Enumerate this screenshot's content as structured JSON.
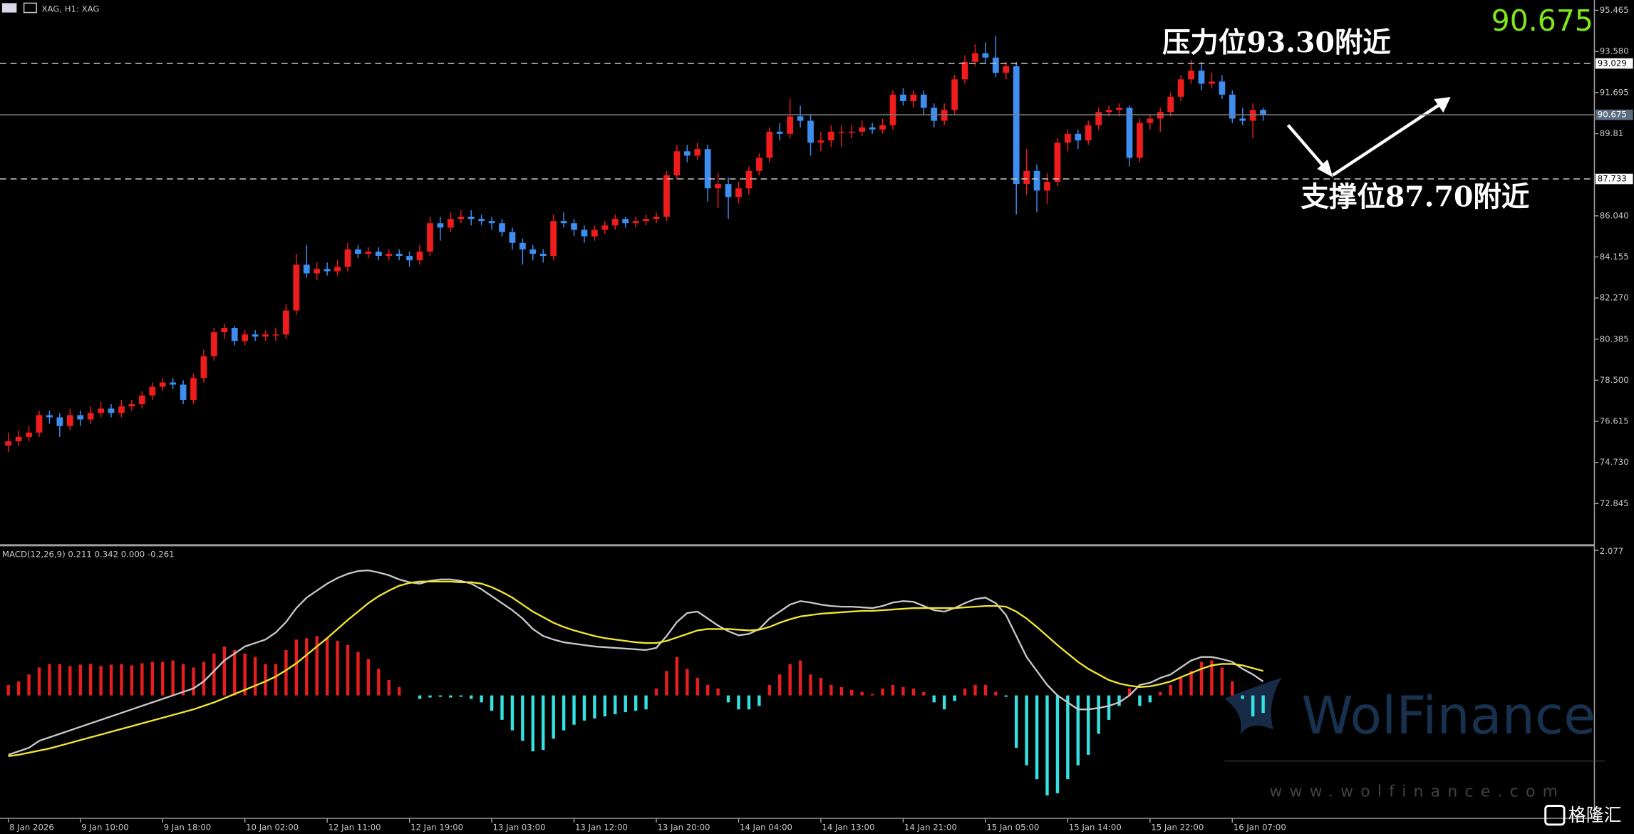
{
  "header": "XAG, H1: XAG",
  "watermark": {
    "brand": "WolFinance",
    "url": "www.wolfinance.com",
    "logo": "格隆汇"
  },
  "chart_data": [
    {
      "type": "candlestick",
      "up_color": "#ee1c1c",
      "down_color": "#3d8ef0",
      "categories": [
        "8 Jan 2026",
        null,
        null,
        null,
        null,
        null,
        null,
        "9 Jan 10:00",
        null,
        null,
        null,
        null,
        null,
        null,
        null,
        "9 Jan 18:00",
        null,
        null,
        null,
        null,
        null,
        null,
        null,
        "10 Jan 02:00",
        null,
        null,
        null,
        null,
        null,
        null,
        null,
        "12 Jan 11:00",
        null,
        null,
        null,
        null,
        null,
        null,
        null,
        "12 Jan 19:00",
        null,
        null,
        null,
        null,
        null,
        null,
        null,
        "13 Jan 03:00",
        null,
        null,
        null,
        null,
        null,
        null,
        null,
        "13 Jan 12:00",
        null,
        null,
        null,
        null,
        null,
        null,
        null,
        "13 Jan 20:00",
        null,
        null,
        null,
        null,
        null,
        null,
        null,
        "14 Jan 04:00",
        null,
        null,
        null,
        null,
        null,
        null,
        null,
        "14 Jan 13:00",
        null,
        null,
        null,
        null,
        null,
        null,
        null,
        "14 Jan 21:00",
        null,
        null,
        null,
        null,
        null,
        null,
        null,
        "15 Jan 05:00",
        null,
        null,
        null,
        null,
        null,
        null,
        null,
        "15 Jan 14:00",
        null,
        null,
        null,
        null,
        null,
        null,
        null,
        "15 Jan 22:00",
        null,
        null,
        null,
        null,
        null,
        null,
        null,
        "16 Jan 07:00",
        null,
        null,
        null
      ],
      "open": [
        75.5,
        75.7,
        75.9,
        76.1,
        76.9,
        76.8,
        76.4,
        76.9,
        76.7,
        77.0,
        77.2,
        77.0,
        77.3,
        77.4,
        77.8,
        78.2,
        78.4,
        78.3,
        77.6,
        78.6,
        79.6,
        80.7,
        80.9,
        80.3,
        80.6,
        80.5,
        80.6,
        80.6,
        81.7,
        83.8,
        83.4,
        83.6,
        83.5,
        83.7,
        84.5,
        84.3,
        84.4,
        84.2,
        84.3,
        84.2,
        84.0,
        84.4,
        85.7,
        85.5,
        85.9,
        86.0,
        85.9,
        85.8,
        85.7,
        85.3,
        84.8,
        84.5,
        84.3,
        84.2,
        85.8,
        85.7,
        85.4,
        85.1,
        85.4,
        85.6,
        85.9,
        85.7,
        85.8,
        85.9,
        86.0,
        87.9,
        89.0,
        88.8,
        89.1,
        87.3,
        87.5,
        86.9,
        87.3,
        88.1,
        88.7,
        89.9,
        89.8,
        90.6,
        90.4,
        89.4,
        89.5,
        89.9,
        89.9,
        89.9,
        90.1,
        90.0,
        90.2,
        91.6,
        91.3,
        91.6,
        91.0,
        90.4,
        90.9,
        92.3,
        93.1,
        93.5,
        93.3,
        92.6,
        92.9,
        87.5,
        88.1,
        87.2,
        87.6,
        89.4,
        89.8,
        89.5,
        90.2,
        90.8,
        90.9,
        91.0,
        88.7,
        90.3,
        90.5,
        90.8,
        91.5,
        92.3,
        92.7,
        92.1,
        92.2,
        91.6,
        90.5,
        90.4,
        90.9
      ],
      "high": [
        76.1,
        76.2,
        76.4,
        77.1,
        77.1,
        77.0,
        77.2,
        77.1,
        77.3,
        77.5,
        77.4,
        77.6,
        77.6,
        78.0,
        78.4,
        78.6,
        78.6,
        78.5,
        78.8,
        79.9,
        80.9,
        81.1,
        81.0,
        80.8,
        80.8,
        80.8,
        80.9,
        82.0,
        84.3,
        84.7,
        83.9,
        83.9,
        84.0,
        84.8,
        84.7,
        84.6,
        84.6,
        84.5,
        84.5,
        84.4,
        84.7,
        86.0,
        86.0,
        86.2,
        86.3,
        86.3,
        86.1,
        86.0,
        85.9,
        85.5,
        85.0,
        84.7,
        84.5,
        86.1,
        86.2,
        85.9,
        85.6,
        85.6,
        85.8,
        86.1,
        86.0,
        86.0,
        86.1,
        86.2,
        88.1,
        89.3,
        89.3,
        89.4,
        89.3,
        88.0,
        87.8,
        87.6,
        88.3,
        88.9,
        90.1,
        90.3,
        91.4,
        91.1,
        90.7,
        89.9,
        90.2,
        90.2,
        90.2,
        90.4,
        90.3,
        90.5,
        91.8,
        91.9,
        91.8,
        91.8,
        91.2,
        91.2,
        92.5,
        93.4,
        93.9,
        94.0,
        94.3,
        93.1,
        93.1,
        89.1,
        88.4,
        88.0,
        89.6,
        90.0,
        90.0,
        90.4,
        91.0,
        91.1,
        91.2,
        91.1,
        90.5,
        90.7,
        91.0,
        91.7,
        92.5,
        93.2,
        93.1,
        92.6,
        92.5,
        91.8,
        91.0,
        91.2,
        91.0
      ],
      "low": [
        75.2,
        75.5,
        75.7,
        75.9,
        76.5,
        75.9,
        76.2,
        76.4,
        76.5,
        76.8,
        76.8,
        76.8,
        77.1,
        77.2,
        77.6,
        78.0,
        78.1,
        77.4,
        77.4,
        78.4,
        79.4,
        80.4,
        80.1,
        80.1,
        80.3,
        80.3,
        80.3,
        80.4,
        81.5,
        83.2,
        83.1,
        83.3,
        83.3,
        83.5,
        84.1,
        84.1,
        84.0,
        84.0,
        84.0,
        83.7,
        83.8,
        84.2,
        84.9,
        85.3,
        85.7,
        85.6,
        85.6,
        85.4,
        85.1,
        84.5,
        83.8,
        84.0,
        83.9,
        84.0,
        85.5,
        85.1,
        84.8,
        84.9,
        85.2,
        85.4,
        85.5,
        85.5,
        85.6,
        85.7,
        85.8,
        87.7,
        88.5,
        88.6,
        86.7,
        86.4,
        85.9,
        86.6,
        87.0,
        87.9,
        88.5,
        89.5,
        89.6,
        90.1,
        88.8,
        89.0,
        89.2,
        89.2,
        89.6,
        89.7,
        89.8,
        89.8,
        90.0,
        91.1,
        91.0,
        90.7,
        90.1,
        90.2,
        90.7,
        92.1,
        92.9,
        93.0,
        92.4,
        92.3,
        86.1,
        87.0,
        86.2,
        86.6,
        87.4,
        89.0,
        89.1,
        89.3,
        90.0,
        90.6,
        90.6,
        88.3,
        88.5,
        90.0,
        89.9,
        90.6,
        91.3,
        92.1,
        91.8,
        91.9,
        91.4,
        90.3,
        90.2,
        89.6,
        90.4
      ],
      "close": [
        75.7,
        75.9,
        76.1,
        76.9,
        76.8,
        76.4,
        76.9,
        76.7,
        77.0,
        77.2,
        77.0,
        77.3,
        77.4,
        77.8,
        78.2,
        78.4,
        78.3,
        77.6,
        78.6,
        79.6,
        80.7,
        80.9,
        80.3,
        80.6,
        80.5,
        80.6,
        80.6,
        81.7,
        83.8,
        83.4,
        83.6,
        83.5,
        83.7,
        84.5,
        84.3,
        84.4,
        84.2,
        84.3,
        84.2,
        84.0,
        84.4,
        85.7,
        85.5,
        85.9,
        86.0,
        85.9,
        85.8,
        85.7,
        85.3,
        84.8,
        84.5,
        84.3,
        84.2,
        85.8,
        85.7,
        85.4,
        85.1,
        85.4,
        85.6,
        85.9,
        85.7,
        85.8,
        85.9,
        86.0,
        87.9,
        89.0,
        88.8,
        89.1,
        87.3,
        87.5,
        86.9,
        87.3,
        88.1,
        88.7,
        89.9,
        89.8,
        90.6,
        90.4,
        89.4,
        89.5,
        89.9,
        89.9,
        89.9,
        90.1,
        90.0,
        90.2,
        91.6,
        91.3,
        91.6,
        91.0,
        90.4,
        90.9,
        92.3,
        93.1,
        93.5,
        93.3,
        92.6,
        92.9,
        87.5,
        88.1,
        87.2,
        87.6,
        89.4,
        89.8,
        89.5,
        90.2,
        90.8,
        90.9,
        91.0,
        88.7,
        90.3,
        90.5,
        90.8,
        91.5,
        92.3,
        92.7,
        92.1,
        92.2,
        91.6,
        90.5,
        90.4,
        90.9,
        90.675
      ],
      "ylim": [
        70.98,
        95.94
      ],
      "yticks": [
        95.465,
        {
          "value": 93.58,
          "label": "93.580"
        },
        91.695,
        89.81,
        {
          "value": 86.04,
          "label": "86.040"
        },
        84.155,
        {
          "value": 82.27,
          "label": "82.270"
        },
        80.385,
        {
          "value": 78.5,
          "label": "78.500"
        },
        76.615,
        {
          "value": 74.73,
          "label": "74.730"
        },
        72.845
      ],
      "levels": [
        93.029,
        87.733
      ],
      "last_price": 90.675,
      "last_price_color": "#7ee81a",
      "annotations": [
        "压力位93.30附近",
        "支撑位87.70附近"
      ]
    },
    {
      "type": "macd",
      "title": "MACD(12,26,9) 0.211 0.342 0.000 -0.261",
      "ylim": [
        -1.76,
        2.12
      ],
      "yticks": [
        2.077
      ],
      "histogram": {
        "positive_color": "#e81e1e",
        "negative_color": "#33e3e3",
        "values": [
          0.15,
          0.2,
          0.3,
          0.4,
          0.45,
          0.45,
          0.42,
          0.44,
          0.45,
          0.42,
          0.44,
          0.45,
          0.43,
          0.46,
          0.48,
          0.48,
          0.5,
          0.45,
          0.4,
          0.48,
          0.6,
          0.7,
          0.65,
          0.6,
          0.55,
          0.45,
          0.45,
          0.65,
          0.8,
          0.82,
          0.85,
          0.82,
          0.78,
          0.72,
          0.62,
          0.52,
          0.38,
          0.22,
          0.12,
          0.0,
          -0.05,
          -0.03,
          -0.02,
          -0.03,
          -0.02,
          -0.05,
          -0.1,
          -0.22,
          -0.35,
          -0.5,
          -0.65,
          -0.8,
          -0.78,
          -0.62,
          -0.5,
          -0.42,
          -0.36,
          -0.33,
          -0.3,
          -0.27,
          -0.24,
          -0.22,
          -0.2,
          0.1,
          0.35,
          0.55,
          0.38,
          0.25,
          0.15,
          0.1,
          -0.1,
          -0.2,
          -0.2,
          -0.15,
          0.15,
          0.3,
          0.45,
          0.5,
          0.3,
          0.25,
          0.15,
          0.12,
          0.08,
          0.05,
          0.02,
          0.1,
          0.15,
          0.12,
          0.1,
          0.05,
          -0.1,
          -0.2,
          -0.08,
          0.1,
          0.15,
          0.15,
          0.05,
          -0.02,
          -0.75,
          -1.0,
          -1.2,
          -1.43,
          -1.4,
          -1.2,
          -1.0,
          -0.85,
          -0.55,
          -0.35,
          -0.15,
          0.1,
          -0.15,
          -0.1,
          0.05,
          0.15,
          0.25,
          0.35,
          0.48,
          0.5,
          0.4,
          0.2,
          -0.05,
          -0.3,
          -0.25
        ]
      },
      "lines": [
        {
          "color": "#c8c8c8",
          "values": [
            -0.85,
            -0.8,
            -0.75,
            -0.65,
            -0.6,
            -0.55,
            -0.5,
            -0.45,
            -0.4,
            -0.35,
            -0.3,
            -0.25,
            -0.2,
            -0.15,
            -0.1,
            -0.05,
            0.0,
            0.05,
            0.1,
            0.2,
            0.35,
            0.5,
            0.6,
            0.7,
            0.75,
            0.8,
            0.9,
            1.05,
            1.25,
            1.4,
            1.5,
            1.6,
            1.68,
            1.74,
            1.78,
            1.79,
            1.76,
            1.72,
            1.66,
            1.62,
            1.6,
            1.64,
            1.66,
            1.66,
            1.64,
            1.6,
            1.52,
            1.42,
            1.32,
            1.22,
            1.1,
            0.95,
            0.85,
            0.8,
            0.76,
            0.74,
            0.72,
            0.7,
            0.69,
            0.68,
            0.67,
            0.66,
            0.65,
            0.68,
            0.85,
            1.05,
            1.18,
            1.2,
            1.1,
            1.0,
            0.92,
            0.86,
            0.88,
            0.95,
            1.1,
            1.2,
            1.3,
            1.35,
            1.33,
            1.3,
            1.28,
            1.27,
            1.27,
            1.26,
            1.25,
            1.28,
            1.33,
            1.35,
            1.34,
            1.28,
            1.22,
            1.2,
            1.25,
            1.32,
            1.38,
            1.4,
            1.32,
            1.15,
            0.85,
            0.55,
            0.35,
            0.15,
            0.0,
            -0.1,
            -0.2,
            -0.2,
            -0.18,
            -0.15,
            -0.1,
            0.0,
            0.15,
            0.18,
            0.25,
            0.3,
            0.4,
            0.5,
            0.55,
            0.55,
            0.52,
            0.48,
            0.38,
            0.3,
            0.2
          ]
        },
        {
          "color": "#f2e531",
          "values": [
            -0.87,
            -0.85,
            -0.82,
            -0.79,
            -0.76,
            -0.72,
            -0.68,
            -0.64,
            -0.6,
            -0.56,
            -0.52,
            -0.48,
            -0.44,
            -0.4,
            -0.36,
            -0.32,
            -0.28,
            -0.24,
            -0.2,
            -0.15,
            -0.1,
            -0.04,
            0.02,
            0.08,
            0.14,
            0.2,
            0.27,
            0.36,
            0.46,
            0.58,
            0.7,
            0.82,
            0.95,
            1.08,
            1.2,
            1.32,
            1.42,
            1.5,
            1.57,
            1.61,
            1.63,
            1.63,
            1.63,
            1.63,
            1.62,
            1.62,
            1.6,
            1.55,
            1.48,
            1.4,
            1.3,
            1.2,
            1.12,
            1.04,
            0.98,
            0.93,
            0.89,
            0.85,
            0.82,
            0.8,
            0.78,
            0.76,
            0.75,
            0.75,
            0.78,
            0.83,
            0.88,
            0.93,
            0.95,
            0.95,
            0.95,
            0.94,
            0.93,
            0.94,
            0.98,
            1.04,
            1.09,
            1.13,
            1.15,
            1.17,
            1.18,
            1.19,
            1.2,
            1.21,
            1.21,
            1.22,
            1.23,
            1.24,
            1.25,
            1.25,
            1.25,
            1.25,
            1.25,
            1.26,
            1.27,
            1.28,
            1.28,
            1.27,
            1.2,
            1.1,
            0.98,
            0.85,
            0.72,
            0.6,
            0.48,
            0.38,
            0.3,
            0.22,
            0.17,
            0.14,
            0.12,
            0.13,
            0.16,
            0.2,
            0.26,
            0.32,
            0.38,
            0.43,
            0.45,
            0.45,
            0.43,
            0.39,
            0.35
          ]
        }
      ]
    }
  ]
}
